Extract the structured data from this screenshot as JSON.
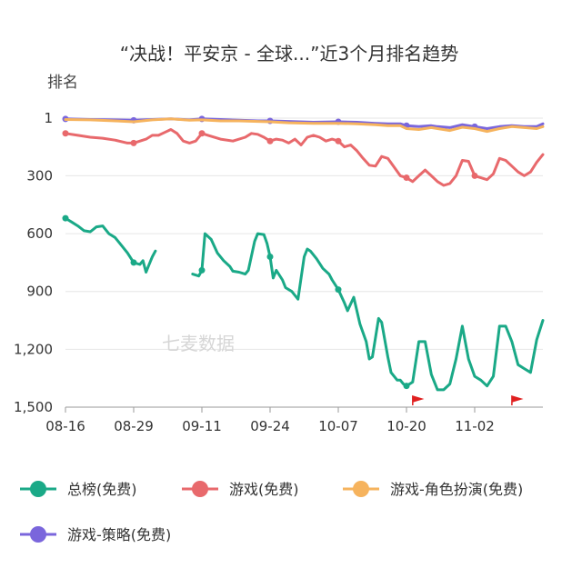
{
  "chart_data": {
    "type": "line",
    "title": "“决战！平安京 - 全球...”近3个月排名趋势",
    "ylabel": "排名",
    "xlabel": "",
    "y_inverted": true,
    "ylim": [
      1,
      1500
    ],
    "yticks": [
      {
        "value": 1,
        "label": "1"
      },
      {
        "value": 300,
        "label": "300"
      },
      {
        "value": 600,
        "label": "600"
      },
      {
        "value": 900,
        "label": "900"
      },
      {
        "value": 1200,
        "label": "1,200"
      },
      {
        "value": 1500,
        "label": "1,500"
      }
    ],
    "x_range": [
      0,
      77
    ],
    "xticks": [
      {
        "x": 0,
        "label": "08-16"
      },
      {
        "x": 11,
        "label": "08-29"
      },
      {
        "x": 22,
        "label": "09-11"
      },
      {
        "x": 33,
        "label": "09-24"
      },
      {
        "x": 44,
        "label": "10-07"
      },
      {
        "x": 55,
        "label": "10-20"
      },
      {
        "x": 66,
        "label": "11-02"
      }
    ],
    "grid": "horizontal",
    "legend_position": "bottom",
    "watermark": "七麦数据",
    "flags_at_x": [
      56,
      72
    ],
    "series": [
      {
        "name": "总榜(免费)",
        "color": "#1aa987",
        "marker_x": [
          0,
          11,
          22,
          33,
          44,
          55
        ],
        "points": [
          [
            0,
            520
          ],
          [
            1,
            540
          ],
          [
            2,
            560
          ],
          [
            3,
            585
          ],
          [
            4,
            590
          ],
          [
            5,
            565
          ],
          [
            6,
            560
          ],
          [
            7,
            600
          ],
          [
            8,
            620
          ],
          [
            9,
            660
          ],
          [
            10,
            700
          ],
          [
            11,
            750
          ],
          [
            12,
            760
          ],
          [
            12.5,
            740
          ],
          [
            13,
            800
          ],
          [
            13.5,
            760
          ],
          [
            14,
            720
          ],
          [
            14.5,
            690
          ],
          null,
          [
            20.5,
            810
          ],
          [
            21.5,
            820
          ],
          [
            22,
            790
          ],
          [
            22.5,
            600
          ],
          [
            23.5,
            630
          ],
          [
            24.5,
            700
          ],
          [
            25.5,
            740
          ],
          [
            26.5,
            770
          ],
          [
            27,
            795
          ],
          [
            28,
            800
          ],
          [
            29,
            810
          ],
          [
            29.5,
            790
          ],
          [
            30.5,
            640
          ],
          [
            31,
            600
          ],
          [
            32,
            605
          ],
          [
            32.5,
            650
          ],
          [
            33,
            720
          ],
          [
            33.5,
            830
          ],
          [
            34,
            790
          ],
          [
            35,
            840
          ],
          [
            35.5,
            880
          ],
          [
            36.5,
            900
          ],
          [
            37,
            920
          ],
          [
            37.5,
            940
          ],
          [
            38.5,
            720
          ],
          [
            39,
            680
          ],
          [
            39.5,
            690
          ],
          [
            40.5,
            730
          ],
          [
            41.5,
            780
          ],
          [
            42.5,
            810
          ],
          [
            43,
            840
          ],
          [
            44,
            890
          ],
          [
            45,
            960
          ],
          [
            45.5,
            1000
          ],
          [
            46.5,
            930
          ],
          [
            47.5,
            1070
          ],
          [
            48.5,
            1160
          ],
          [
            49,
            1250
          ],
          [
            49.5,
            1240
          ],
          [
            50.5,
            1040
          ],
          [
            51,
            1060
          ],
          [
            52,
            1240
          ],
          [
            52.5,
            1320
          ],
          [
            53,
            1340
          ],
          [
            53.5,
            1360
          ],
          [
            54,
            1360
          ],
          [
            54.5,
            1380
          ],
          [
            55,
            1390
          ],
          [
            56,
            1370
          ],
          [
            57,
            1160
          ],
          [
            58,
            1160
          ],
          [
            59,
            1330
          ],
          [
            60,
            1410
          ],
          [
            61,
            1410
          ],
          [
            62,
            1380
          ],
          [
            63,
            1250
          ],
          [
            64,
            1080
          ],
          [
            65,
            1250
          ],
          [
            66,
            1340
          ],
          [
            67,
            1360
          ],
          [
            68,
            1390
          ],
          [
            69,
            1340
          ],
          [
            70,
            1080
          ],
          [
            71,
            1080
          ],
          [
            72,
            1160
          ],
          [
            73,
            1280
          ],
          [
            74,
            1300
          ],
          [
            75,
            1320
          ],
          [
            76,
            1150
          ],
          [
            77,
            1050
          ]
        ]
      },
      {
        "name": "游戏(免费)",
        "color": "#e8696c",
        "marker_x": [
          0,
          11,
          22,
          33,
          44,
          55,
          66
        ],
        "points": [
          [
            0,
            80
          ],
          [
            2,
            90
          ],
          [
            4,
            100
          ],
          [
            6,
            105
          ],
          [
            8,
            115
          ],
          [
            10,
            130
          ],
          [
            11,
            130
          ],
          [
            13,
            110
          ],
          [
            14,
            90
          ],
          [
            15,
            90
          ],
          [
            16,
            75
          ],
          [
            17,
            60
          ],
          [
            18,
            80
          ],
          [
            19,
            120
          ],
          [
            20,
            130
          ],
          [
            21,
            120
          ],
          [
            22,
            80
          ],
          [
            23,
            90
          ],
          [
            25,
            110
          ],
          [
            27,
            120
          ],
          [
            29,
            100
          ],
          [
            30,
            80
          ],
          [
            31,
            85
          ],
          [
            32,
            100
          ],
          [
            33,
            120
          ],
          [
            34,
            110
          ],
          [
            35,
            115
          ],
          [
            36,
            130
          ],
          [
            37,
            110
          ],
          [
            38,
            140
          ],
          [
            39,
            100
          ],
          [
            40,
            90
          ],
          [
            41,
            100
          ],
          [
            42,
            120
          ],
          [
            43,
            110
          ],
          [
            44,
            120
          ],
          [
            45,
            150
          ],
          [
            46,
            140
          ],
          [
            47,
            170
          ],
          [
            48,
            210
          ],
          [
            49,
            245
          ],
          [
            50,
            250
          ],
          [
            51,
            200
          ],
          [
            52,
            210
          ],
          [
            53,
            255
          ],
          [
            54,
            300
          ],
          [
            55,
            310
          ],
          [
            56,
            330
          ],
          [
            57,
            300
          ],
          [
            58,
            270
          ],
          [
            59,
            300
          ],
          [
            60,
            330
          ],
          [
            61,
            350
          ],
          [
            62,
            340
          ],
          [
            63,
            300
          ],
          [
            64,
            220
          ],
          [
            65,
            225
          ],
          [
            66,
            300
          ],
          [
            67,
            310
          ],
          [
            68,
            320
          ],
          [
            69,
            290
          ],
          [
            70,
            210
          ],
          [
            71,
            220
          ],
          [
            72,
            250
          ],
          [
            73,
            280
          ],
          [
            74,
            300
          ],
          [
            75,
            280
          ],
          [
            76,
            230
          ],
          [
            77,
            190
          ]
        ]
      },
      {
        "name": "游戏-角色扮演(免费)",
        "color": "#f6b35d",
        "marker_x": [],
        "points": [
          [
            0,
            8
          ],
          [
            4,
            10
          ],
          [
            8,
            15
          ],
          [
            11,
            20
          ],
          [
            14,
            10
          ],
          [
            17,
            5
          ],
          [
            20,
            12
          ],
          [
            22,
            10
          ],
          [
            25,
            15
          ],
          [
            28,
            15
          ],
          [
            31,
            18
          ],
          [
            33,
            20
          ],
          [
            36,
            25
          ],
          [
            40,
            28
          ],
          [
            44,
            28
          ],
          [
            47,
            30
          ],
          [
            50,
            35
          ],
          [
            52,
            40
          ],
          [
            54,
            40
          ],
          [
            55,
            55
          ],
          [
            57,
            60
          ],
          [
            59,
            50
          ],
          [
            60,
            55
          ],
          [
            62,
            65
          ],
          [
            64,
            48
          ],
          [
            66,
            55
          ],
          [
            68,
            70
          ],
          [
            70,
            55
          ],
          [
            72,
            45
          ],
          [
            74,
            50
          ],
          [
            76,
            55
          ],
          [
            77,
            45
          ]
        ]
      },
      {
        "name": "游戏-策略(免费)",
        "color": "#7a66dc",
        "marker_x": [
          0,
          11,
          22,
          33,
          44,
          55,
          66
        ],
        "points": [
          [
            0,
            5
          ],
          [
            4,
            8
          ],
          [
            8,
            10
          ],
          [
            11,
            12
          ],
          [
            14,
            8
          ],
          [
            17,
            5
          ],
          [
            20,
            10
          ],
          [
            22,
            5
          ],
          [
            25,
            8
          ],
          [
            28,
            12
          ],
          [
            31,
            15
          ],
          [
            33,
            15
          ],
          [
            36,
            18
          ],
          [
            40,
            22
          ],
          [
            44,
            20
          ],
          [
            47,
            22
          ],
          [
            50,
            28
          ],
          [
            52,
            30
          ],
          [
            54,
            30
          ],
          [
            55,
            40
          ],
          [
            57,
            45
          ],
          [
            59,
            40
          ],
          [
            60,
            45
          ],
          [
            62,
            50
          ],
          [
            64,
            35
          ],
          [
            66,
            45
          ],
          [
            68,
            55
          ],
          [
            70,
            45
          ],
          [
            72,
            40
          ],
          [
            74,
            45
          ],
          [
            76,
            45
          ],
          [
            77,
            30
          ]
        ]
      }
    ]
  }
}
